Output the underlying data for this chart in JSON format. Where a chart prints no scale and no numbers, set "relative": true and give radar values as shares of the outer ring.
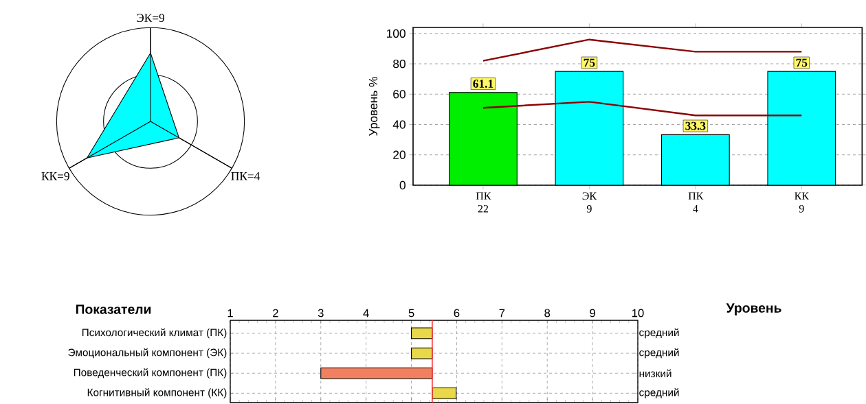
{
  "chart_data": [
    {
      "type": "radar",
      "relative": true,
      "grid": true,
      "categories": [
        "ЭК=9",
        "ПК=4",
        "КК=9"
      ],
      "series": [
        {
          "color": "#00ffff",
          "values": [
            0.73,
            0.35,
            0.78
          ]
        }
      ]
    },
    {
      "type": "bar",
      "ylabel": "Уровень %",
      "categories": [
        "ПК 22",
        "ЭК 9",
        "ПК 4",
        "КК 9"
      ],
      "ylim": [
        0,
        104
      ],
      "yticks": [
        0,
        20,
        40,
        60,
        80,
        100
      ],
      "grid": "y",
      "series": [
        {
          "type": "bar",
          "colors": [
            "#00ee00",
            "#00ffff",
            "#00ffff",
            "#00ffff"
          ],
          "values": [
            61.1,
            75,
            33.3,
            75
          ],
          "value_labels": [
            "61.1",
            "75",
            "33.3",
            "75"
          ]
        },
        {
          "type": "line",
          "color": "#8b0000",
          "values": [
            82,
            96,
            88,
            88
          ]
        },
        {
          "type": "line",
          "color": "#8b0000",
          "values": [
            51,
            55,
            46,
            46
          ]
        }
      ]
    },
    {
      "type": "bar",
      "orientation": "horizontal",
      "ylabel": "Показатели",
      "y2label": "Уровень",
      "grid": true,
      "categories": [
        "Психологический климат (ПК)",
        "Эмоциональный компонент (ЭК)",
        "Поведенческий компонент (ПК)",
        "Когнитивный компонент (КК)"
      ],
      "y2_categories": [
        "средний",
        "средний",
        "низкий",
        "средний"
      ],
      "base": [
        5,
        5,
        3,
        5.46
      ],
      "values": [
        0.46,
        0.46,
        2.46,
        0.53
      ],
      "colors": [
        "#e8d84a",
        "#e8d84a",
        "#f08060",
        "#e8d84a"
      ],
      "xlim": [
        1,
        10
      ],
      "xticks": [
        1,
        2,
        3,
        4,
        5,
        6,
        7,
        8,
        9,
        10
      ],
      "ref_lines": [
        {
          "axis": "x",
          "value": 5.46,
          "color": "#ff3030"
        }
      ]
    }
  ]
}
